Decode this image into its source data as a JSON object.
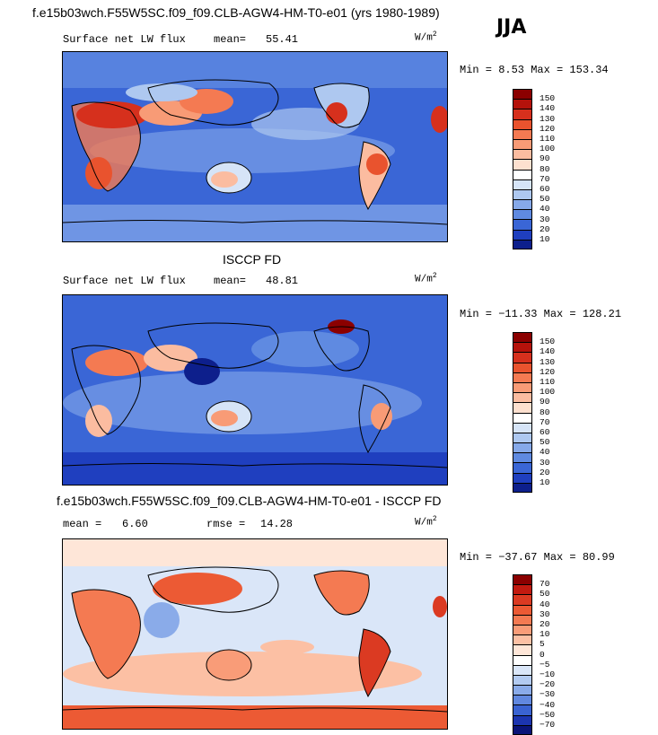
{
  "header": {
    "title": "f.e15b03wch.F55W5SC.f09_f09.CLB-AGW4-HM-T0-e01 (yrs 1980-1989)",
    "season": "JJA"
  },
  "units": {
    "base": "W/m",
    "exp": "2"
  },
  "panels": [
    {
      "panel_title": "",
      "variable": "Surface net LW flux",
      "stat1_label": "mean=",
      "stat1_value": "55.41",
      "stat2_label": "",
      "stat2_value": "",
      "minmax": "Min =   8.53 Max = 153.34",
      "colorbar_labels": [
        "150",
        "140",
        "130",
        "120",
        "110",
        "100",
        "90",
        "80",
        "70",
        "60",
        "50",
        "40",
        "30",
        "20",
        "10"
      ],
      "colorbar_colors": [
        "#8b0000",
        "#b5120b",
        "#d6301d",
        "#e9532e",
        "#f47a52",
        "#f89b76",
        "#fbbca0",
        "#fde0cf",
        "#ffffff",
        "#d6e4f7",
        "#aec8f0",
        "#86a9e9",
        "#5f8ae1",
        "#3a66d6",
        "#1f3fbf",
        "#0d1f8c"
      ]
    },
    {
      "panel_title": "ISCCP FD",
      "variable": "Surface net LW flux",
      "stat1_label": "mean=",
      "stat1_value": "48.81",
      "stat2_label": "",
      "stat2_value": "",
      "minmax": "Min = −11.33 Max = 128.21",
      "colorbar_labels": [
        "150",
        "140",
        "130",
        "120",
        "110",
        "100",
        "90",
        "80",
        "70",
        "60",
        "50",
        "40",
        "30",
        "20",
        "10"
      ],
      "colorbar_colors": [
        "#8b0000",
        "#b5120b",
        "#d6301d",
        "#e9532e",
        "#f47a52",
        "#f89b76",
        "#fbbca0",
        "#fde0cf",
        "#ffffff",
        "#d6e4f7",
        "#aec8f0",
        "#86a9e9",
        "#5f8ae1",
        "#3a66d6",
        "#1f3fbf",
        "#0d1f8c"
      ]
    },
    {
      "panel_title": "f.e15b03wch.F55W5SC.f09_f09.CLB-AGW4-HM-T0-e01 - ISCCP FD",
      "variable": "",
      "stat1_label": "mean =",
      "stat1_value": "6.60",
      "stat2_label": "rmse =",
      "stat2_value": "14.28",
      "minmax": "Min = −37.67 Max =  80.99",
      "colorbar_labels": [
        "70",
        "50",
        "40",
        "30",
        "20",
        "10",
        "5",
        "0",
        "−5",
        "−10",
        "−20",
        "−30",
        "−40",
        "−50",
        "−70"
      ],
      "colorbar_colors": [
        "#8b0000",
        "#c21a10",
        "#db3a22",
        "#ec5a34",
        "#f47a52",
        "#f99c78",
        "#fcc0a4",
        "#fee6d8",
        "#ffffff",
        "#dae6f8",
        "#b3cbf1",
        "#8aabe9",
        "#6188df",
        "#3a63d2",
        "#1c35b0",
        "#0a1478"
      ]
    }
  ]
}
